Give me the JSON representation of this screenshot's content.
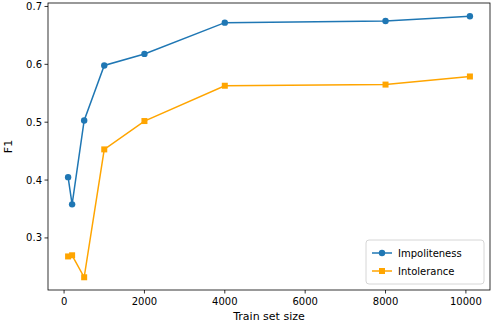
{
  "chart_data": {
    "type": "line",
    "x_label": "Train set size",
    "y_label": "F1",
    "x": [
      100,
      200,
      500,
      1000,
      2000,
      4000,
      8000,
      10100
    ],
    "series": [
      {
        "name": "Impoliteness",
        "color": "#1f77b4",
        "marker": "circle",
        "line_style": "solid",
        "values": [
          0.405,
          0.358,
          0.503,
          0.598,
          0.618,
          0.672,
          0.675,
          0.683
        ]
      },
      {
        "name": "Intolerance",
        "color": "#ffa500",
        "marker": "square",
        "line_style": "solid",
        "values": [
          0.268,
          0.27,
          0.232,
          0.453,
          0.502,
          0.563,
          0.565,
          0.579
        ]
      }
    ],
    "xlim": [
      -400,
      10600
    ],
    "ylim": [
      0.21,
      0.706
    ],
    "xticks": [
      0,
      2000,
      4000,
      6000,
      8000,
      10000
    ],
    "yticks": [
      0.3,
      0.4,
      0.5,
      0.6,
      0.7
    ],
    "grid": false,
    "legend": "lower right"
  }
}
